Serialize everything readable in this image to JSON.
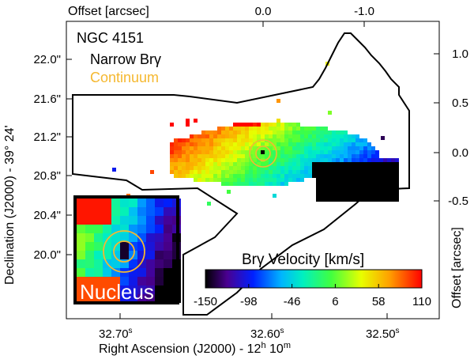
{
  "chart_data": {
    "type": "heatmap",
    "labels": {
      "object": "NGC 4151",
      "line1": "Narrow Brγ",
      "line2": "Continuum",
      "inset": "Nucleus",
      "colorbar_title": "Brγ Velocity [km/s]"
    },
    "axes": {
      "bottom": {
        "label_main": "Right Ascension (J2000) - 12",
        "label_h": "h",
        "label_mid": " 10",
        "label_m": "m",
        "ticks": [
          "32.70",
          "32.60",
          "32.50"
        ],
        "tick_sup": "s"
      },
      "left": {
        "label": "Declination (J2000) - 39° 24'",
        "ticks": [
          "22.0\"",
          "21.6\"",
          "21.2\"",
          "20.8\"",
          "20.4\"",
          "20.0\""
        ]
      },
      "top": {
        "label": "Offset [arcsec]",
        "ticks": [
          "0.0",
          "-1.0"
        ]
      },
      "right": {
        "label": "Offset [arcsec]",
        "ticks": [
          "1.0",
          "0.5",
          "0.0",
          "-0.5"
        ]
      }
    },
    "colorbar": {
      "ticks": [
        "-150",
        "-98",
        "-46",
        "6",
        "58",
        "110"
      ],
      "range": [
        -150,
        110
      ]
    },
    "colors": {
      "continuum": "#f5b830"
    }
  }
}
